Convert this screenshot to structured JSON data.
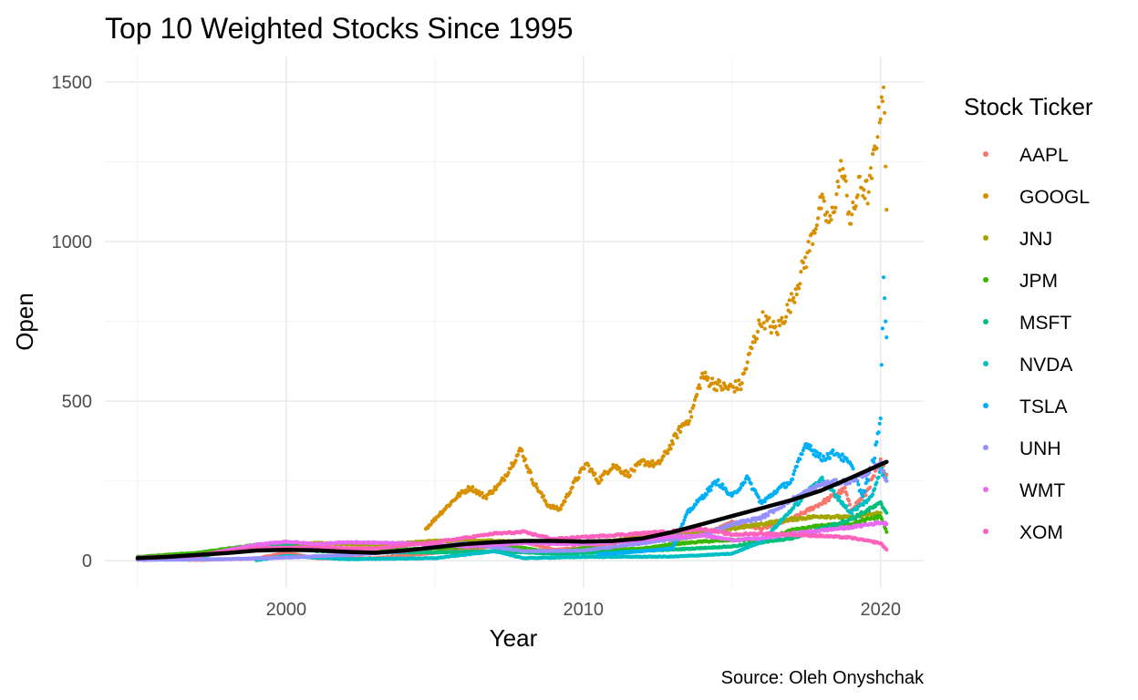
{
  "chart_data": {
    "type": "scatter",
    "title": "Top 10 Weighted Stocks Since 1995",
    "xlabel": "Year",
    "ylabel": "Open",
    "caption": "Source: Oleh Onyshchak",
    "xlim": [
      1993.9,
      2021.45
    ],
    "ylim": [
      -85,
      1580
    ],
    "x_ticks": [
      2000,
      2010,
      2020
    ],
    "y_ticks": [
      0,
      500,
      1000,
      1500
    ],
    "legend_title": "Stock Ticker",
    "legend_position": "right",
    "grid": true,
    "series": [
      {
        "name": "AAPL",
        "color": "#F8766D",
        "points": [
          [
            1995,
            5
          ],
          [
            1997,
            3
          ],
          [
            1999,
            7
          ],
          [
            2000,
            25
          ],
          [
            2001,
            8
          ],
          [
            2003,
            8
          ],
          [
            2005,
            25
          ],
          [
            2007,
            45
          ],
          [
            2008,
            60
          ],
          [
            2009,
            35
          ],
          [
            2010,
            40
          ],
          [
            2011,
            55
          ],
          [
            2012,
            85
          ],
          [
            2013,
            65
          ],
          [
            2014,
            80
          ],
          [
            2015,
            120
          ],
          [
            2016,
            100
          ],
          [
            2017,
            130
          ],
          [
            2018,
            180
          ],
          [
            2018.8,
            225
          ],
          [
            2019,
            160
          ],
          [
            2019.5,
            210
          ],
          [
            2020,
            310
          ],
          [
            2020.2,
            270
          ]
        ]
      },
      {
        "name": "GOOGL",
        "color": "#D89000",
        "points": [
          [
            2004.7,
            100
          ],
          [
            2005.2,
            150
          ],
          [
            2005.8,
            205
          ],
          [
            2006.2,
            230
          ],
          [
            2006.7,
            200
          ],
          [
            2007.2,
            240
          ],
          [
            2007.9,
            350
          ],
          [
            2008.3,
            250
          ],
          [
            2008.8,
            175
          ],
          [
            2009.2,
            160
          ],
          [
            2009.7,
            245
          ],
          [
            2010.1,
            305
          ],
          [
            2010.5,
            250
          ],
          [
            2011.0,
            300
          ],
          [
            2011.5,
            270
          ],
          [
            2012.0,
            310
          ],
          [
            2012.5,
            300
          ],
          [
            2012.8,
            340
          ],
          [
            2013.3,
            420
          ],
          [
            2013.6,
            450
          ],
          [
            2014.0,
            580
          ],
          [
            2014.3,
            560
          ],
          [
            2014.8,
            540
          ],
          [
            2015.3,
            550
          ],
          [
            2015.7,
            680
          ],
          [
            2016.0,
            760
          ],
          [
            2016.5,
            720
          ],
          [
            2017.0,
            810
          ],
          [
            2017.5,
            950
          ],
          [
            2018.0,
            1120
          ],
          [
            2018.3,
            1050
          ],
          [
            2018.7,
            1240
          ],
          [
            2019.0,
            1060
          ],
          [
            2019.3,
            1180
          ],
          [
            2019.6,
            1150
          ],
          [
            2019.9,
            1350
          ],
          [
            2020.1,
            1500
          ],
          [
            2020.2,
            1100
          ]
        ]
      },
      {
        "name": "JNJ",
        "color": "#A3A500",
        "points": [
          [
            1995,
            10
          ],
          [
            1997,
            22
          ],
          [
            1999,
            45
          ],
          [
            2001,
            55
          ],
          [
            2003,
            50
          ],
          [
            2005,
            62
          ],
          [
            2007,
            63
          ],
          [
            2009,
            55
          ],
          [
            2011,
            62
          ],
          [
            2013,
            85
          ],
          [
            2015,
            100
          ],
          [
            2017,
            130
          ],
          [
            2018,
            140
          ],
          [
            2019,
            135
          ],
          [
            2020,
            150
          ]
        ]
      },
      {
        "name": "JPM",
        "color": "#39B600",
        "points": [
          [
            1995,
            12
          ],
          [
            1997,
            25
          ],
          [
            1999,
            50
          ],
          [
            2000,
            55
          ],
          [
            2001,
            40
          ],
          [
            2002,
            25
          ],
          [
            2003,
            35
          ],
          [
            2005,
            38
          ],
          [
            2007,
            48
          ],
          [
            2008,
            40
          ],
          [
            2009,
            25
          ],
          [
            2010,
            40
          ],
          [
            2011,
            35
          ],
          [
            2012,
            38
          ],
          [
            2013,
            52
          ],
          [
            2014,
            60
          ],
          [
            2015,
            65
          ],
          [
            2016,
            65
          ],
          [
            2017,
            95
          ],
          [
            2018,
            110
          ],
          [
            2019,
            115
          ],
          [
            2020,
            140
          ],
          [
            2020.2,
            90
          ]
        ]
      },
      {
        "name": "MSFT",
        "color": "#00BF7D",
        "points": [
          [
            1995,
            4
          ],
          [
            1997,
            12
          ],
          [
            1999,
            45
          ],
          [
            2000,
            50
          ],
          [
            2001,
            30
          ],
          [
            2003,
            26
          ],
          [
            2005,
            26
          ],
          [
            2007,
            30
          ],
          [
            2009,
            22
          ],
          [
            2011,
            27
          ],
          [
            2013,
            35
          ],
          [
            2015,
            45
          ],
          [
            2017,
            70
          ],
          [
            2018,
            100
          ],
          [
            2019,
            130
          ],
          [
            2020,
            180
          ],
          [
            2020.2,
            150
          ]
        ]
      },
      {
        "name": "NVDA",
        "color": "#00BFC4",
        "points": [
          [
            1999,
            2
          ],
          [
            2000,
            15
          ],
          [
            2002,
            5
          ],
          [
            2005,
            8
          ],
          [
            2007,
            30
          ],
          [
            2008,
            8
          ],
          [
            2010,
            12
          ],
          [
            2013,
            13
          ],
          [
            2015,
            22
          ],
          [
            2016,
            60
          ],
          [
            2017,
            160
          ],
          [
            2018,
            260
          ],
          [
            2019,
            150
          ],
          [
            2019.7,
            200
          ],
          [
            2020,
            290
          ],
          [
            2020.2,
            250
          ]
        ]
      },
      {
        "name": "TSLA",
        "color": "#00B0F6",
        "points": [
          [
            2010.5,
            20
          ],
          [
            2012,
            30
          ],
          [
            2013.0,
            40
          ],
          [
            2013.5,
            150
          ],
          [
            2014.0,
            200
          ],
          [
            2014.5,
            250
          ],
          [
            2015.0,
            200
          ],
          [
            2015.5,
            260
          ],
          [
            2016.0,
            180
          ],
          [
            2016.5,
            220
          ],
          [
            2017.0,
            250
          ],
          [
            2017.5,
            370
          ],
          [
            2018.0,
            320
          ],
          [
            2018.5,
            340
          ],
          [
            2019.0,
            300
          ],
          [
            2019.4,
            200
          ],
          [
            2019.8,
            330
          ],
          [
            2020.0,
            450
          ],
          [
            2020.1,
            900
          ],
          [
            2020.2,
            700
          ]
        ]
      },
      {
        "name": "UNH",
        "color": "#9590FF",
        "points": [
          [
            1995,
            3
          ],
          [
            1998,
            5
          ],
          [
            2000,
            10
          ],
          [
            2002,
            18
          ],
          [
            2004,
            30
          ],
          [
            2006,
            55
          ],
          [
            2008,
            30
          ],
          [
            2010,
            32
          ],
          [
            2012,
            55
          ],
          [
            2014,
            80
          ],
          [
            2015,
            115
          ],
          [
            2016,
            135
          ],
          [
            2017,
            190
          ],
          [
            2018,
            240
          ],
          [
            2019,
            250
          ],
          [
            2020,
            300
          ],
          [
            2020.2,
            250
          ]
        ]
      },
      {
        "name": "WMT",
        "color": "#E76BF3",
        "points": [
          [
            1995,
            10
          ],
          [
            1997,
            15
          ],
          [
            1999,
            50
          ],
          [
            2000,
            60
          ],
          [
            2001,
            52
          ],
          [
            2002,
            58
          ],
          [
            2004,
            55
          ],
          [
            2006,
            45
          ],
          [
            2008,
            55
          ],
          [
            2010,
            52
          ],
          [
            2012,
            65
          ],
          [
            2013,
            75
          ],
          [
            2014,
            80
          ],
          [
            2015,
            65
          ],
          [
            2016,
            70
          ],
          [
            2017,
            85
          ],
          [
            2018,
            95
          ],
          [
            2019,
            105
          ],
          [
            2020,
            120
          ],
          [
            2020.2,
            115
          ]
        ]
      },
      {
        "name": "XOM",
        "color": "#FF62BC",
        "points": [
          [
            1995,
            8
          ],
          [
            1997,
            18
          ],
          [
            1999,
            40
          ],
          [
            2001,
            42
          ],
          [
            2003,
            38
          ],
          [
            2005,
            58
          ],
          [
            2007,
            85
          ],
          [
            2008,
            90
          ],
          [
            2009,
            68
          ],
          [
            2011,
            80
          ],
          [
            2013,
            92
          ],
          [
            2014,
            100
          ],
          [
            2015,
            82
          ],
          [
            2016,
            85
          ],
          [
            2017,
            82
          ],
          [
            2018,
            78
          ],
          [
            2019,
            72
          ],
          [
            2020,
            55
          ],
          [
            2020.2,
            35
          ]
        ]
      }
    ],
    "trend": {
      "name": "smooth",
      "color": "#000000",
      "points": [
        [
          1995.0,
          8
        ],
        [
          1996.0,
          12
        ],
        [
          1997.0,
          18
        ],
        [
          1998.0,
          24
        ],
        [
          1999.0,
          32
        ],
        [
          2000.0,
          34
        ],
        [
          2001.0,
          33
        ],
        [
          2002.0,
          28
        ],
        [
          2003.0,
          25
        ],
        [
          2004.0,
          32
        ],
        [
          2005.0,
          42
        ],
        [
          2006.0,
          52
        ],
        [
          2007.0,
          58
        ],
        [
          2008.0,
          62
        ],
        [
          2009.0,
          62
        ],
        [
          2010.0,
          60
        ],
        [
          2011.0,
          62
        ],
        [
          2012.0,
          70
        ],
        [
          2013.0,
          90
        ],
        [
          2014.0,
          115
        ],
        [
          2015.0,
          140
        ],
        [
          2016.0,
          165
        ],
        [
          2017.0,
          190
        ],
        [
          2018.0,
          220
        ],
        [
          2019.0,
          260
        ],
        [
          2020.2,
          310
        ]
      ]
    }
  }
}
